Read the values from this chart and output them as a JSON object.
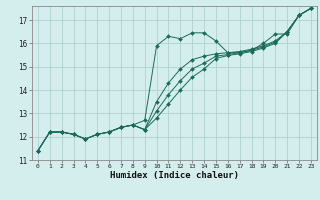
{
  "xlabel": "Humidex (Indice chaleur)",
  "bg_color": "#d4eeee",
  "grid_color": "#aacccc",
  "line_color": "#1a6b5a",
  "xlim": [
    -0.5,
    23.5
  ],
  "ylim": [
    11.0,
    17.6
  ],
  "xticks": [
    0,
    1,
    2,
    3,
    4,
    5,
    6,
    7,
    8,
    9,
    10,
    11,
    12,
    13,
    14,
    15,
    16,
    17,
    18,
    19,
    20,
    21,
    22,
    23
  ],
  "yticks": [
    11,
    12,
    13,
    14,
    15,
    16,
    17
  ],
  "line1_x": [
    0,
    1,
    2,
    3,
    4,
    5,
    6,
    7,
    8,
    9,
    10,
    11,
    12,
    13,
    14,
    15,
    16,
    17,
    18,
    19,
    20,
    21,
    22,
    23
  ],
  "line1_y": [
    11.4,
    12.2,
    12.2,
    12.1,
    11.9,
    12.1,
    12.2,
    12.4,
    12.5,
    12.7,
    15.9,
    16.3,
    16.2,
    16.45,
    16.45,
    16.1,
    15.6,
    15.6,
    15.7,
    16.0,
    16.4,
    16.4,
    17.2,
    17.5
  ],
  "line2_x": [
    0,
    1,
    2,
    3,
    4,
    5,
    6,
    7,
    8,
    9,
    10,
    11,
    12,
    13,
    14,
    15,
    16,
    17,
    18,
    19,
    20,
    21,
    22,
    23
  ],
  "line2_y": [
    11.4,
    12.2,
    12.2,
    12.1,
    11.9,
    12.1,
    12.2,
    12.4,
    12.5,
    12.3,
    13.5,
    14.3,
    14.9,
    15.3,
    15.45,
    15.55,
    15.6,
    15.65,
    15.75,
    15.9,
    16.1,
    16.5,
    17.2,
    17.5
  ],
  "line3_x": [
    0,
    1,
    2,
    3,
    4,
    5,
    6,
    7,
    8,
    9,
    10,
    11,
    12,
    13,
    14,
    15,
    16,
    17,
    18,
    19,
    20,
    21,
    22,
    23
  ],
  "line3_y": [
    11.4,
    12.2,
    12.2,
    12.1,
    11.9,
    12.1,
    12.2,
    12.4,
    12.5,
    12.3,
    13.1,
    13.8,
    14.4,
    14.9,
    15.15,
    15.45,
    15.52,
    15.6,
    15.7,
    15.85,
    16.05,
    16.5,
    17.2,
    17.5
  ],
  "line4_x": [
    0,
    1,
    2,
    3,
    4,
    5,
    6,
    7,
    8,
    9,
    10,
    11,
    12,
    13,
    14,
    15,
    16,
    17,
    18,
    19,
    20,
    21,
    22,
    23
  ],
  "line4_y": [
    11.4,
    12.2,
    12.2,
    12.1,
    11.9,
    12.1,
    12.2,
    12.4,
    12.5,
    12.3,
    12.8,
    13.4,
    14.0,
    14.55,
    14.9,
    15.35,
    15.48,
    15.55,
    15.65,
    15.8,
    16.0,
    16.5,
    17.2,
    17.5
  ]
}
